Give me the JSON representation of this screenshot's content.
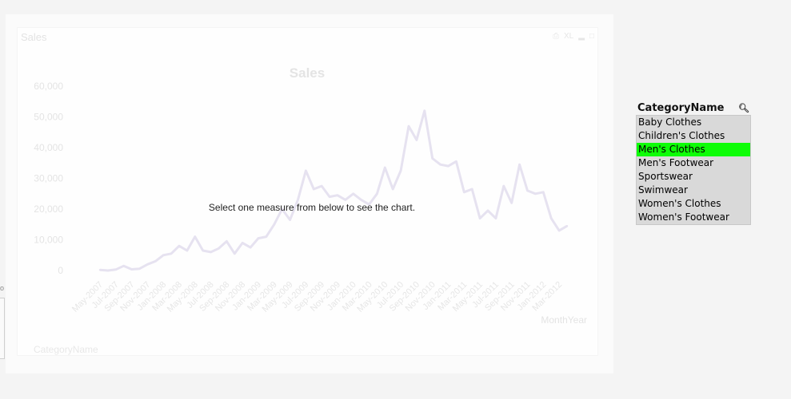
{
  "sheet": {
    "chart_caption": "Sales",
    "caption_icons": [
      "print-icon",
      "xl-icon",
      "minimize-icon",
      "maximize-icon"
    ],
    "xl_label": "XL",
    "message": "Select one measure from below to see the chart.",
    "dimension_label": "CategoryName",
    "side_marker": "o"
  },
  "listbox": {
    "title": "CategoryName",
    "items": [
      {
        "label": "Baby Clothes",
        "selected": false
      },
      {
        "label": "Children's Clothes",
        "selected": false
      },
      {
        "label": "Men's Clothes",
        "selected": true
      },
      {
        "label": "Men's Footwear",
        "selected": false
      },
      {
        "label": "Sportswear",
        "selected": false
      },
      {
        "label": "Swimwear",
        "selected": false
      },
      {
        "label": "Women's Clothes",
        "selected": false
      },
      {
        "label": "Women's Footwear",
        "selected": false
      }
    ],
    "selected_color": "#0dfd07"
  },
  "chart_data": {
    "type": "line",
    "title": "Sales",
    "xlabel": "MonthYear",
    "ylabel": "",
    "ylim": [
      0,
      60000
    ],
    "yticks": [
      0,
      10000,
      20000,
      30000,
      40000,
      50000,
      60000
    ],
    "ytick_labels": [
      "0",
      "10,000",
      "20,000",
      "30,000",
      "40,000",
      "50,000",
      "60,000"
    ],
    "tick_labels": [
      "May-2007",
      "Jul-2007",
      "Sep-2007",
      "Nov-2007",
      "Jan-2008",
      "Mar-2008",
      "May-2008",
      "Jul-2008",
      "Sep-2008",
      "Nov-2008",
      "Jan-2009",
      "Mar-2009",
      "May-2009",
      "Jul-2009",
      "Sep-2009",
      "Nov-2009",
      "Jan-2010",
      "Mar-2010",
      "May-2010",
      "Jul-2010",
      "Sep-2010",
      "Nov-2010",
      "Jan-2011",
      "Mar-2011",
      "May-2011",
      "Jul-2011",
      "Sep-2011",
      "Nov-2011",
      "Jan-2012",
      "Mar-2012"
    ],
    "x": [
      "May-2007",
      "Jun-2007",
      "Jul-2007",
      "Aug-2007",
      "Sep-2007",
      "Oct-2007",
      "Nov-2007",
      "Dec-2007",
      "Jan-2008",
      "Feb-2008",
      "Mar-2008",
      "Apr-2008",
      "May-2008",
      "Jun-2008",
      "Jul-2008",
      "Aug-2008",
      "Sep-2008",
      "Oct-2008",
      "Nov-2008",
      "Dec-2008",
      "Jan-2009",
      "Feb-2009",
      "Mar-2009",
      "Apr-2009",
      "May-2009",
      "Jun-2009",
      "Jul-2009",
      "Aug-2009",
      "Sep-2009",
      "Oct-2009",
      "Nov-2009",
      "Dec-2009",
      "Jan-2010",
      "Feb-2010",
      "Mar-2010",
      "Apr-2010",
      "May-2010",
      "Jun-2010",
      "Jul-2010",
      "Aug-2010",
      "Sep-2010",
      "Oct-2010",
      "Nov-2010",
      "Dec-2010",
      "Jan-2011",
      "Feb-2011",
      "Mar-2011",
      "Apr-2011",
      "May-2011",
      "Jun-2011",
      "Jul-2011",
      "Aug-2011",
      "Sep-2011",
      "Oct-2011",
      "Nov-2011",
      "Dec-2011",
      "Jan-2012",
      "Feb-2012",
      "Mar-2012",
      "Apr-2012"
    ],
    "series": [
      {
        "values": [
          200,
          0,
          300,
          1500,
          400,
          600,
          2000,
          3000,
          5000,
          5500,
          8000,
          6500,
          11000,
          6500,
          6000,
          7200,
          9500,
          5500,
          9000,
          7500,
          10500,
          11000,
          15000,
          20000,
          16500,
          23000,
          32500,
          26500,
          27500,
          24000,
          24500,
          23000,
          25000,
          23000,
          21500,
          25000,
          33500,
          26500,
          32500,
          47000,
          42500,
          52000,
          36500,
          34500,
          34000,
          35500,
          25500,
          26500,
          17000,
          19500,
          17000,
          27500,
          22000,
          34500,
          26000,
          25000,
          25500,
          17000,
          13000,
          14500
        ]
      }
    ],
    "line_color": "#e6e2f0",
    "grid": false,
    "legend": "none"
  }
}
